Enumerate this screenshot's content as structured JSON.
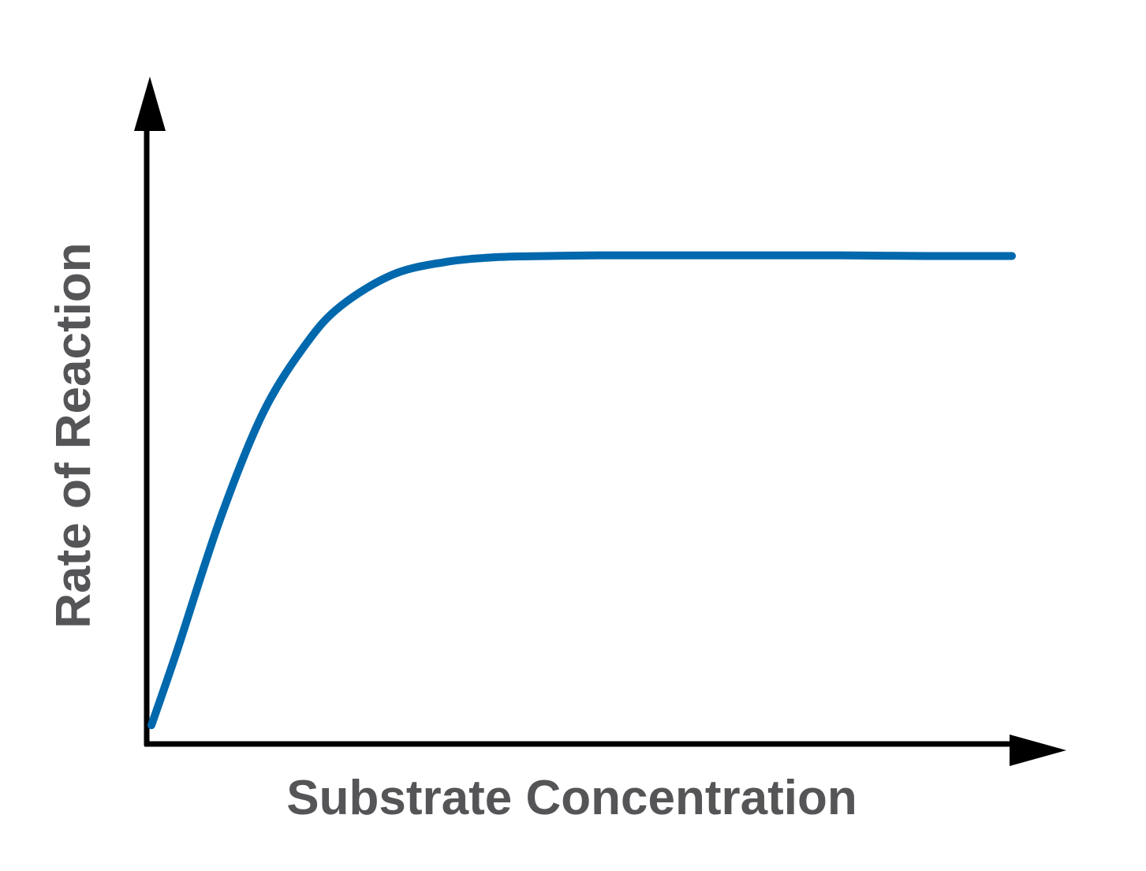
{
  "chart_data": {
    "type": "line",
    "title": "",
    "xlabel": "Substrate Concentration",
    "ylabel": "Rate of Reaction",
    "xlim": [
      0,
      100
    ],
    "ylim": [
      0,
      100
    ],
    "grid": false,
    "ticks": false,
    "series": [
      {
        "color": "#0068ad",
        "x": [
          0,
          3,
          8,
          13,
          18,
          22,
          28,
          34,
          40,
          46,
          52,
          60,
          70,
          80,
          90,
          100
        ],
        "y": [
          3,
          15,
          36,
          53,
          64,
          70,
          75,
          77,
          77.8,
          78,
          78.1,
          78.1,
          78.1,
          78.1,
          78,
          78
        ]
      }
    ]
  },
  "colors": {
    "line": "#0068ad",
    "axis": "#000000",
    "label": "#555558"
  }
}
